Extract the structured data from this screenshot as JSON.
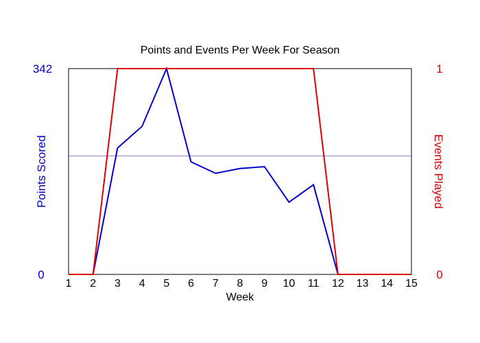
{
  "chart_data": {
    "type": "line",
    "title": "Points and Events Per Week For Season",
    "xlabel": "Week",
    "x": [
      1,
      2,
      3,
      4,
      5,
      6,
      7,
      8,
      9,
      10,
      11,
      12,
      13,
      14,
      15
    ],
    "xlim": [
      1,
      15
    ],
    "y_left": {
      "label": "Points Scored",
      "ylim": [
        0,
        342
      ],
      "tick_labels": [
        "0",
        "342"
      ],
      "color": "#0000cc"
    },
    "y_right": {
      "label": "Events Played",
      "ylim": [
        0,
        1
      ],
      "tick_labels": [
        "0",
        "1"
      ],
      "color": "#dd0000"
    },
    "reference_line": {
      "axis": "left",
      "value": 197,
      "color": "#8080c0"
    },
    "series": [
      {
        "axis": "left",
        "color": "#0000cc",
        "values": [
          0,
          0,
          210,
          246,
          342,
          187,
          168,
          176,
          179,
          120,
          149,
          0,
          0,
          0,
          0
        ]
      },
      {
        "axis": "right",
        "color": "#dd0000",
        "values": [
          0,
          0,
          1,
          1,
          1,
          1,
          1,
          1,
          1,
          1,
          1,
          0,
          0,
          0,
          0
        ]
      }
    ],
    "grid": false
  }
}
